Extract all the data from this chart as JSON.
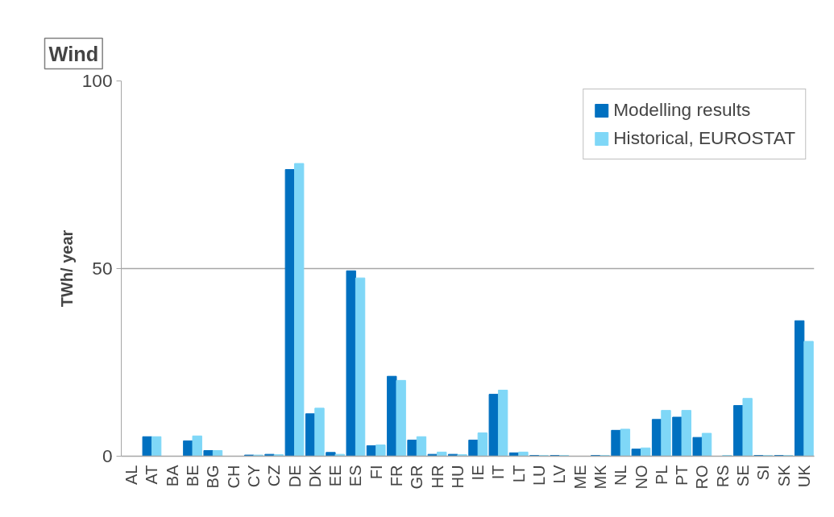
{
  "chart_data": {
    "type": "bar",
    "title": "Wind",
    "ylabel": "TWh/ year",
    "categories": [
      "AL",
      "AT",
      "BA",
      "BE",
      "BG",
      "CH",
      "CY",
      "CZ",
      "DE",
      "DK",
      "EE",
      "ES",
      "FI",
      "FR",
      "GR",
      "HR",
      "HU",
      "IE",
      "IT",
      "LT",
      "LU",
      "LV",
      "ME",
      "MK",
      "NL",
      "NO",
      "PL",
      "PT",
      "RO",
      "RS",
      "SE",
      "SI",
      "SK",
      "UK"
    ],
    "series": [
      {
        "name": "Modelling results",
        "color": "#0070c0",
        "values": [
          0,
          5.2,
          0,
          4.1,
          1.5,
          0,
          0.3,
          0.5,
          76.4,
          11.3,
          1.0,
          49.4,
          2.8,
          21.3,
          4.3,
          0.5,
          0.5,
          4.3,
          16.5,
          0.9,
          0.2,
          0.2,
          0,
          0.2,
          6.9,
          1.9,
          9.8,
          10.4,
          5.0,
          0,
          13.5,
          0.2,
          0.2,
          36.1
        ]
      },
      {
        "name": "Historical, EUROSTAT",
        "color": "#7fd7f7",
        "values": [
          0,
          5.2,
          0,
          5.4,
          1.5,
          0,
          0.3,
          0.4,
          78.0,
          12.8,
          0.5,
          47.5,
          3.0,
          20.2,
          5.2,
          1.1,
          0.4,
          6.2,
          17.6,
          1.1,
          0.2,
          0.2,
          0,
          0.2,
          7.2,
          2.2,
          12.2,
          12.2,
          6.1,
          0.2,
          15.4,
          0.2,
          0.2,
          30.6
        ]
      }
    ],
    "ylim": [
      0,
      100
    ],
    "yticks": [
      0,
      50,
      100
    ],
    "grid": "y",
    "legend": "top right"
  }
}
